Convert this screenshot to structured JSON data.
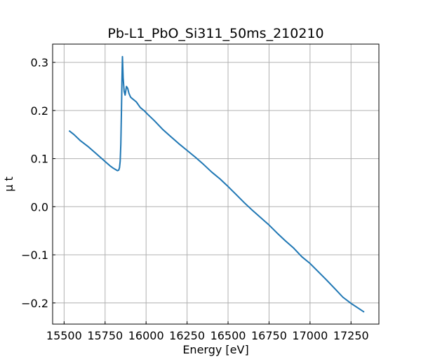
{
  "chart_data": {
    "type": "line",
    "title": "Pb-L1_PbO_Si311_50ms_210210",
    "xlabel": "Energy [eV]",
    "ylabel": "μ t",
    "xlim": [
      15430,
      17420
    ],
    "ylim": [
      -0.244,
      0.338
    ],
    "xticks": [
      15500,
      15750,
      16000,
      16250,
      16500,
      16750,
      17000,
      17250
    ],
    "xtick_labels": [
      "15500",
      "15750",
      "16000",
      "16250",
      "16500",
      "16750",
      "17000",
      "17250"
    ],
    "yticks": [
      -0.2,
      -0.1,
      0.0,
      0.1,
      0.2,
      0.3
    ],
    "ytick_labels": [
      "−0.2",
      "−0.1",
      "0.0",
      "0.1",
      "0.2",
      "0.3"
    ],
    "grid": true,
    "series": [
      {
        "name": "",
        "color": "#1f77b4",
        "x": [
          15530,
          15560,
          15600,
          15650,
          15700,
          15750,
          15780,
          15800,
          15815,
          15825,
          15833,
          15838,
          15842,
          15846,
          15850,
          15853,
          15856,
          15860,
          15866,
          15872,
          15880,
          15888,
          15895,
          15905,
          15915,
          15940,
          15965,
          15990,
          16010,
          16050,
          16100,
          16150,
          16200,
          16250,
          16300,
          16350,
          16400,
          16450,
          16500,
          16550,
          16600,
          16650,
          16700,
          16750,
          16800,
          16850,
          16900,
          16950,
          17000,
          17050,
          17100,
          17150,
          17200,
          17250,
          17290,
          17330
        ],
        "y": [
          0.158,
          0.15,
          0.137,
          0.124,
          0.109,
          0.094,
          0.085,
          0.08,
          0.077,
          0.075,
          0.076,
          0.081,
          0.095,
          0.13,
          0.2,
          0.262,
          0.312,
          0.268,
          0.24,
          0.232,
          0.25,
          0.246,
          0.236,
          0.228,
          0.225,
          0.218,
          0.206,
          0.199,
          0.192,
          0.179,
          0.161,
          0.146,
          0.131,
          0.117,
          0.103,
          0.088,
          0.072,
          0.058,
          0.042,
          0.025,
          0.008,
          -0.008,
          -0.023,
          -0.038,
          -0.055,
          -0.071,
          -0.086,
          -0.104,
          -0.118,
          -0.135,
          -0.152,
          -0.17,
          -0.188,
          -0.201,
          -0.21,
          -0.219
        ]
      }
    ]
  }
}
